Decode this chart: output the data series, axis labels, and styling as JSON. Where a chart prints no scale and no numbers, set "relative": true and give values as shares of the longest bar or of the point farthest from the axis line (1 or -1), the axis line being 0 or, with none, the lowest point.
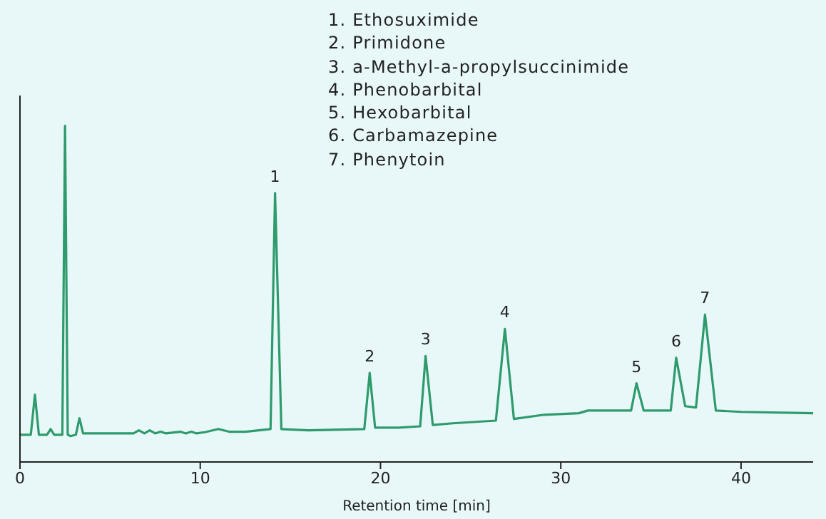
{
  "chart_data": {
    "type": "line",
    "relative": true,
    "xlabel": "Retention time [min]",
    "xlim": [
      0,
      44
    ],
    "xticks": [
      0,
      10,
      20,
      30,
      40
    ],
    "grid": false,
    "legend": false,
    "marker": "none",
    "line_style": "solid",
    "x": [
      0,
      0.6,
      0.83,
      1.05,
      1.5,
      1.7,
      1.9,
      2.35,
      2.5,
      2.65,
      2.8,
      3.1,
      3.3,
      3.5,
      6.3,
      6.6,
      6.9,
      7.2,
      7.5,
      7.8,
      8.1,
      8.9,
      9.2,
      9.5,
      9.8,
      10.3,
      11,
      11.6,
      12.5,
      13.9,
      14.15,
      14.5,
      16,
      19.1,
      19.4,
      19.7,
      21,
      22.2,
      22.5,
      22.9,
      24,
      26.4,
      26.9,
      27.4,
      29,
      31,
      31.5,
      33.9,
      34.2,
      34.6,
      36.1,
      36.4,
      36.9,
      37.5,
      38,
      38.6,
      40,
      44
    ],
    "series": [
      {
        "color": "#2e9b6c",
        "values": [
          0.081,
          0.081,
          0.2,
          0.081,
          0.081,
          0.098,
          0.081,
          0.081,
          1.0,
          0.081,
          0.077,
          0.081,
          0.13,
          0.085,
          0.085,
          0.094,
          0.085,
          0.094,
          0.085,
          0.09,
          0.085,
          0.09,
          0.085,
          0.09,
          0.085,
          0.089,
          0.098,
          0.09,
          0.09,
          0.098,
          0.8,
          0.098,
          0.094,
          0.098,
          0.265,
          0.102,
          0.102,
          0.106,
          0.315,
          0.11,
          0.115,
          0.123,
          0.396,
          0.128,
          0.14,
          0.145,
          0.153,
          0.153,
          0.234,
          0.153,
          0.153,
          0.31,
          0.166,
          0.162,
          0.438,
          0.153,
          0.149,
          0.145
        ]
      }
    ],
    "annotations": [
      "1. Ethosuximide",
      "2. Primidone",
      "3. a-Methyl-a-propylsuccinimide",
      "4. Phenobarbital",
      "5. Hexobarbital",
      "6. Carbamazepine",
      "7. Phenytoin",
      {
        "text": "1",
        "x": 14.15,
        "y": 0.8
      },
      {
        "text": "2",
        "x": 19.4,
        "y": 0.265
      },
      {
        "text": "3",
        "x": 22.5,
        "y": 0.315
      },
      {
        "text": "4",
        "x": 26.9,
        "y": 0.396
      },
      {
        "text": "5",
        "x": 34.2,
        "y": 0.234
      },
      {
        "text": "6",
        "x": 36.4,
        "y": 0.31
      },
      {
        "text": "7",
        "x": 38,
        "y": 0.438
      }
    ]
  }
}
